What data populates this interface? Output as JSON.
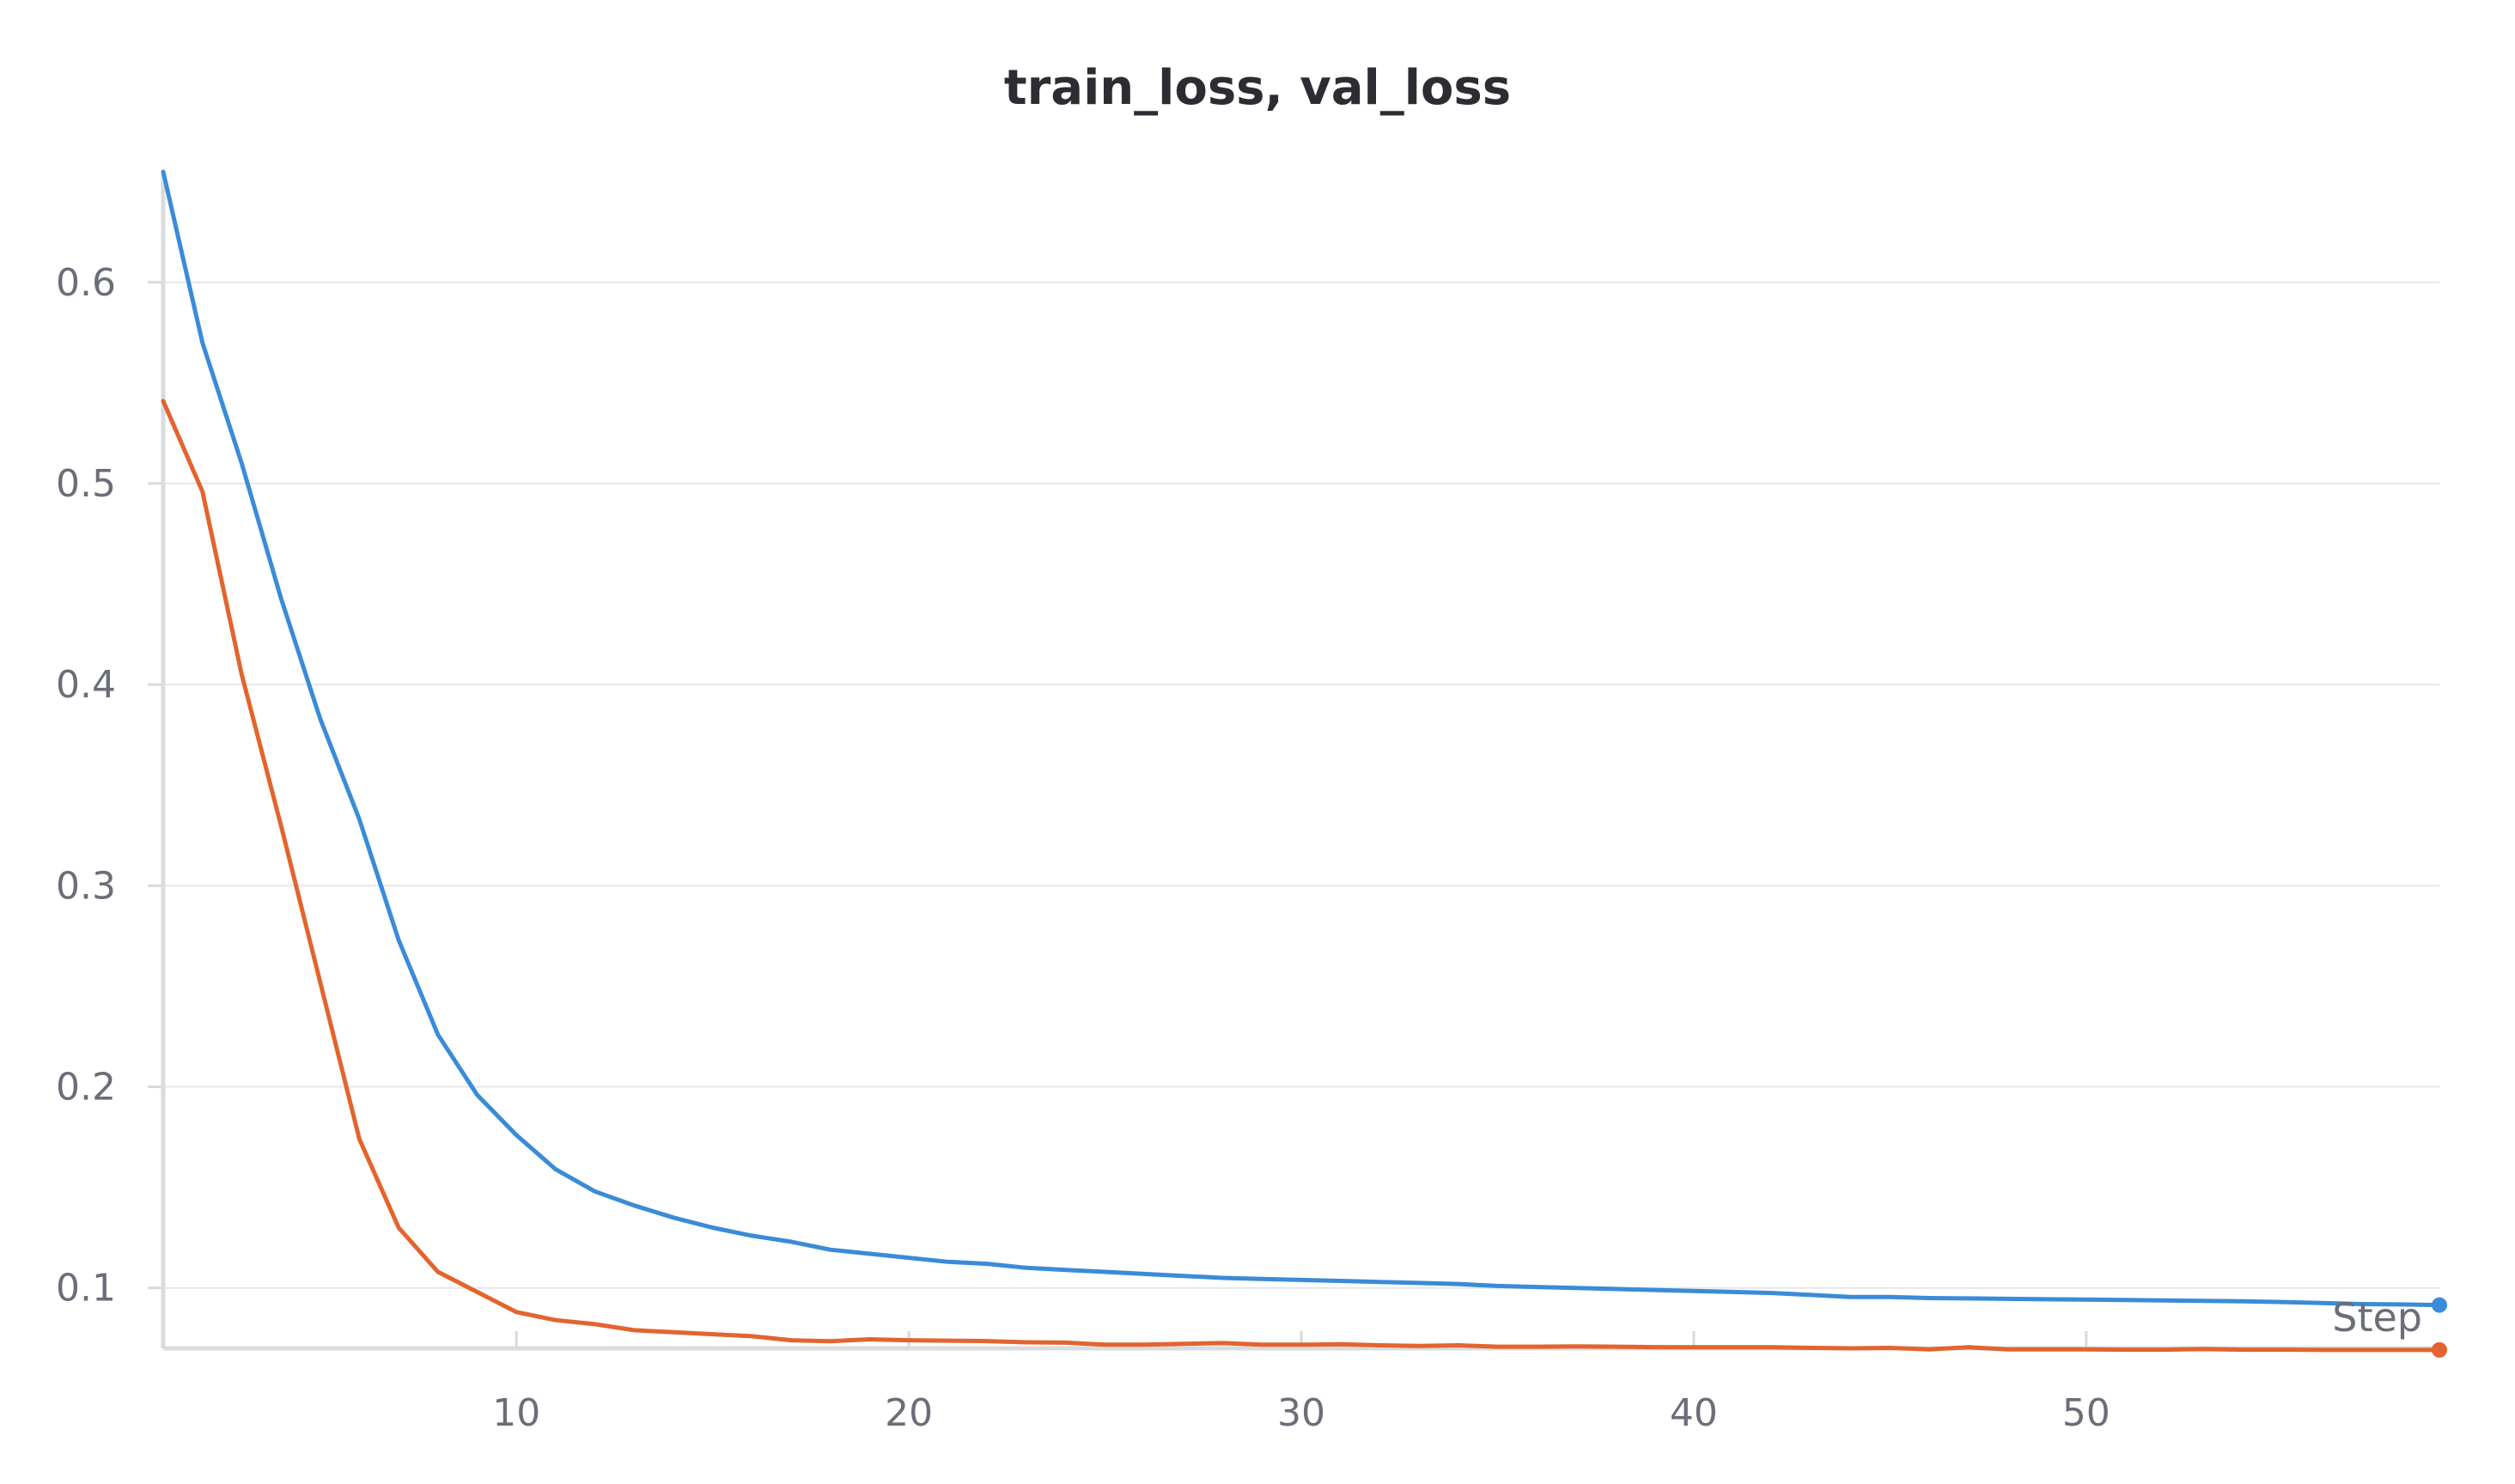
{
  "chart_data": {
    "type": "line",
    "title": "train_loss, val_loss",
    "xlabel": "Step",
    "ylabel": "",
    "xlim": [
      1,
      59
    ],
    "ylim": [
      0.07,
      0.655
    ],
    "x_ticks": [
      10,
      20,
      30,
      40,
      50
    ],
    "y_ticks": [
      0.1,
      0.2,
      0.3,
      0.4,
      0.5,
      0.6
    ],
    "grid": "horizontal",
    "x": [
      1,
      2,
      3,
      4,
      5,
      6,
      7,
      8,
      9,
      10,
      11,
      12,
      13,
      14,
      15,
      16,
      17,
      18,
      19,
      20,
      21,
      22,
      23,
      24,
      25,
      26,
      27,
      28,
      29,
      30,
      31,
      32,
      33,
      34,
      35,
      36,
      37,
      38,
      39,
      40,
      41,
      42,
      43,
      44,
      45,
      46,
      47,
      48,
      49,
      50,
      51,
      52,
      53,
      54,
      55,
      56,
      57,
      58,
      59
    ],
    "series": [
      {
        "color": "#3a8bd8",
        "values": [
          0.655,
          0.57,
          0.51,
          0.443,
          0.383,
          0.333,
          0.273,
          0.226,
          0.196,
          0.176,
          0.159,
          0.148,
          0.141,
          0.135,
          0.13,
          0.126,
          0.123,
          0.119,
          0.117,
          0.115,
          0.113,
          0.112,
          0.11,
          0.109,
          0.108,
          0.107,
          0.106,
          0.105,
          0.1045,
          0.104,
          0.1035,
          0.103,
          0.1025,
          0.102,
          0.101,
          0.1005,
          0.1,
          0.0995,
          0.099,
          0.0985,
          0.098,
          0.0975,
          0.0965,
          0.0955,
          0.0955,
          0.095,
          0.0948,
          0.0946,
          0.0944,
          0.0942,
          0.094,
          0.0938,
          0.0936,
          0.0934,
          0.093,
          0.0925,
          0.092,
          0.0918,
          0.0915
        ]
      },
      {
        "color": "#e2642e",
        "values": [
          0.541,
          0.496,
          0.405,
          0.33,
          0.252,
          0.174,
          0.13,
          0.108,
          0.098,
          0.088,
          0.084,
          0.082,
          0.079,
          0.078,
          0.077,
          0.076,
          0.074,
          0.0735,
          0.0745,
          0.074,
          0.0738,
          0.0736,
          0.073,
          0.0728,
          0.0718,
          0.0718,
          0.0722,
          0.0726,
          0.0718,
          0.0718,
          0.072,
          0.0715,
          0.0712,
          0.0715,
          0.0708,
          0.0708,
          0.071,
          0.0708,
          0.0706,
          0.0705,
          0.0705,
          0.0705,
          0.0702,
          0.07,
          0.0702,
          0.0695,
          0.0705,
          0.0695,
          0.0695,
          0.0695,
          0.0693,
          0.0693,
          0.0696,
          0.0693,
          0.0693,
          0.0692,
          0.0692,
          0.0692,
          0.0692
        ]
      }
    ]
  }
}
